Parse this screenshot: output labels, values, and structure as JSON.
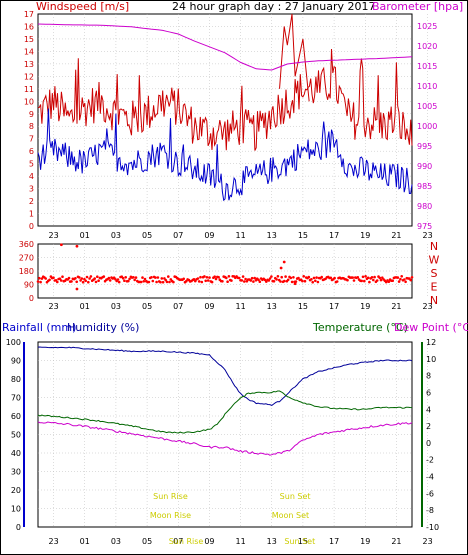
{
  "header": {
    "title": "24 hour graph day : 27 January 2017",
    "left_label": "Windspeed [m/s]",
    "right_label": "Barometer [hpa]"
  },
  "colors": {
    "wind": "#cc0000",
    "gust": "#cc0000",
    "avg_wind": "#0000cc",
    "barometer": "#cc00cc",
    "direction": "#ff0000",
    "temperature": "#006600",
    "humidity": "#000099",
    "dewpoint": "#cc00cc",
    "rain": "#0000cc",
    "astro": "#cccc00",
    "grid": "#bbbbbb"
  },
  "chart_data": [
    {
      "type": "line",
      "name": "wind-chart",
      "x_ticks": [
        "23",
        "01",
        "03",
        "05",
        "07",
        "09",
        "11",
        "13",
        "15",
        "17",
        "19",
        "21",
        "23"
      ],
      "ylim_left": [
        0,
        17
      ],
      "yticks_left": [
        0,
        1,
        2,
        3,
        4,
        5,
        6,
        7,
        8,
        9,
        10,
        11,
        12,
        13,
        14,
        15,
        16,
        17
      ],
      "ylim_right": [
        975,
        1028
      ],
      "yticks_right": [
        975,
        980,
        985,
        990,
        995,
        1000,
        1005,
        1010,
        1015,
        1020,
        1025
      ],
      "series": [
        {
          "x": [
            0,
            1,
            2,
            3,
            4,
            5,
            6,
            7,
            8,
            9,
            10,
            11,
            12,
            13,
            14,
            15,
            16,
            17,
            18,
            19,
            20,
            21,
            22,
            23,
            24
          ],
          "values": [
            9,
            10,
            8.5,
            9.5,
            10,
            9,
            8.5,
            9,
            10,
            9.5,
            8,
            7.5,
            7.5,
            8,
            7.5,
            9,
            10,
            11,
            11,
            11.5,
            8.5,
            8.5,
            8,
            8.5,
            7
          ]
        },
        {
          "x": [
            0,
            1,
            2,
            3,
            4,
            5,
            6,
            7,
            8,
            9,
            10,
            11,
            12,
            13,
            14,
            15,
            16,
            17,
            18,
            19,
            20,
            21,
            22,
            23,
            24
          ],
          "values": [
            5.5,
            6,
            5.5,
            5,
            6,
            5.5,
            5,
            5.5,
            6,
            5,
            4.5,
            4,
            3,
            3.5,
            4,
            4.5,
            5,
            6,
            6,
            7,
            4.5,
            4.5,
            4,
            4,
            3.5
          ]
        },
        {
          "x": [
            0,
            2,
            4,
            6,
            8,
            9,
            10,
            11,
            12,
            13,
            14,
            15,
            16,
            17,
            18,
            20,
            22,
            24
          ],
          "values": [
            1025.5,
            1025.3,
            1025.2,
            1024.8,
            1023.9,
            1023.0,
            1021.3,
            1019.8,
            1018.3,
            1015.9,
            1014.3,
            1014.0,
            1015.5,
            1016.0,
            1016.3,
            1016.6,
            1016.9,
            1017.3
          ]
        }
      ]
    },
    {
      "type": "scatter",
      "name": "direction-chart",
      "x_ticks": [
        "23",
        "01",
        "03",
        "05",
        "07",
        "09",
        "11",
        "13",
        "15",
        "17",
        "19",
        "21",
        "23"
      ],
      "ylim": [
        0,
        360
      ],
      "yticks": [
        0,
        45,
        90,
        135,
        180,
        225,
        270,
        315,
        360
      ],
      "compass": [
        "N",
        "W",
        "S",
        "E",
        "N"
      ],
      "typical_value": 125,
      "outliers": [
        {
          "x": 1.5,
          "y": 355
        },
        {
          "x": 2.5,
          "y": 345
        },
        {
          "x": 2.5,
          "y": 60
        },
        {
          "x": 15.8,
          "y": 240
        },
        {
          "x": 15.6,
          "y": 200
        },
        {
          "x": 16.5,
          "y": 95
        }
      ]
    },
    {
      "type": "line",
      "name": "temp-chart",
      "left_label": "Rainfall (mm)",
      "left_label2": "Humidity (%)",
      "right_label": "Temperature (°C)",
      "right_label2": "Dew Point (°C)",
      "x_ticks": [
        "23",
        "01",
        "03",
        "05",
        "07",
        "09",
        "11",
        "13",
        "15",
        "17",
        "19",
        "21",
        "23"
      ],
      "ylim_left": [
        0,
        100
      ],
      "yticks_left": [
        0,
        10,
        20,
        30,
        40,
        50,
        60,
        70,
        80,
        90,
        100
      ],
      "ylim_right": [
        -10,
        12
      ],
      "yticks_right": [
        -10,
        -8,
        -6,
        -4,
        -2,
        0,
        2,
        4,
        6,
        8,
        10,
        12
      ],
      "series": [
        {
          "x": [
            0,
            2,
            4,
            6,
            8,
            10,
            11,
            12,
            12.5,
            13,
            13.5,
            14,
            15,
            15.5,
            16,
            17,
            18,
            19,
            20,
            21,
            22,
            23,
            24
          ],
          "values": [
            97,
            97,
            96,
            95,
            95,
            94,
            93,
            85,
            78,
            72,
            69,
            67,
            66,
            68,
            72,
            80,
            84,
            86,
            88,
            89,
            90,
            90,
            90
          ]
        },
        {
          "x": [
            0,
            2,
            4,
            6,
            8,
            9,
            10,
            11,
            11.5,
            12,
            12.5,
            13,
            13.5,
            14,
            15,
            15.5,
            16,
            17,
            18,
            19,
            20,
            21,
            22,
            23,
            24
          ],
          "values": [
            3.3,
            3.0,
            2.6,
            2.0,
            1.3,
            1.2,
            1.3,
            1.6,
            2.2,
            3.4,
            4.5,
            5.3,
            5.9,
            6.0,
            6.0,
            6.2,
            5.5,
            4.8,
            4.3,
            4.1,
            4.0,
            4.0,
            4.2,
            4.2,
            4.2
          ]
        },
        {
          "x": [
            0,
            2,
            4,
            6,
            8,
            10,
            11,
            12,
            13,
            14,
            15,
            16,
            17,
            18,
            20,
            22,
            24
          ],
          "values": [
            2.5,
            2.2,
            1.7,
            1.1,
            0.5,
            -0.1,
            -0.5,
            -0.5,
            -1.0,
            -1.2,
            -1.4,
            -1.0,
            0.3,
            1.0,
            1.6,
            2.1,
            2.4
          ]
        },
        {
          "x": [
            0,
            24
          ],
          "values": [
            0,
            0
          ]
        }
      ],
      "astro": [
        {
          "label": "Sun Rise",
          "x": 8.5,
          "row": "top"
        },
        {
          "label": "Sun Set",
          "x": 16.5,
          "row": "top"
        },
        {
          "label": "Moon Rise",
          "x": 8.5,
          "row": "mid"
        },
        {
          "label": "Moon Set",
          "x": 16.2,
          "row": "mid"
        },
        {
          "label": "Sun Rise",
          "x": 9.5,
          "row": "axis"
        },
        {
          "label": "Sun Set",
          "x": 16.8,
          "row": "axis"
        }
      ]
    }
  ]
}
